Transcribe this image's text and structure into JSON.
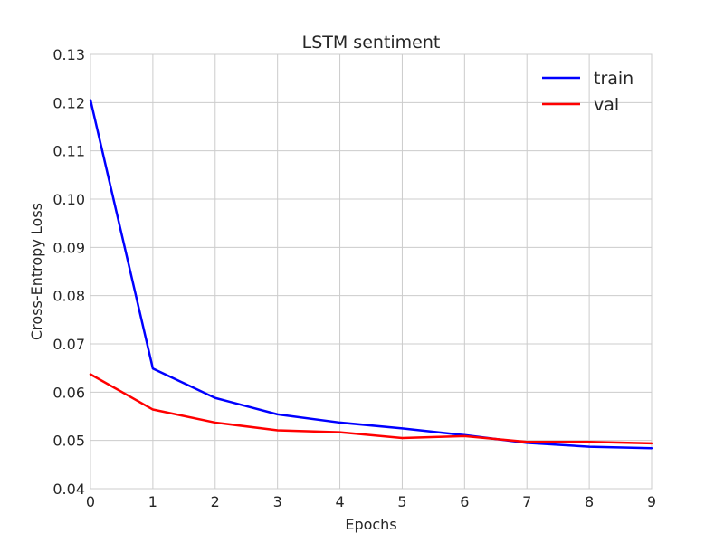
{
  "chart_data": {
    "type": "line",
    "title": "LSTM sentiment",
    "xlabel": "Epochs",
    "ylabel": "Cross-Entropy Loss",
    "xlim": [
      0,
      9
    ],
    "ylim": [
      0.04,
      0.13
    ],
    "grid": true,
    "legend_position": "top-right",
    "x": [
      0,
      1,
      2,
      3,
      4,
      5,
      6,
      7,
      8,
      9
    ],
    "x_ticks": [
      "0",
      "1",
      "2",
      "3",
      "4",
      "5",
      "6",
      "7",
      "8",
      "9"
    ],
    "y_ticks": [
      "0.04",
      "0.05",
      "0.06",
      "0.07",
      "0.08",
      "0.09",
      "0.10",
      "0.11",
      "0.12",
      "0.13"
    ],
    "series": [
      {
        "name": "train",
        "color": "#0000ff",
        "values": [
          0.1205,
          0.0649,
          0.0588,
          0.0554,
          0.0537,
          0.0525,
          0.0511,
          0.0495,
          0.0487,
          0.0484
        ]
      },
      {
        "name": "val",
        "color": "#ff0000",
        "values": [
          0.0637,
          0.0564,
          0.0537,
          0.0521,
          0.0517,
          0.0505,
          0.0509,
          0.0497,
          0.0497,
          0.0494
        ]
      }
    ]
  }
}
